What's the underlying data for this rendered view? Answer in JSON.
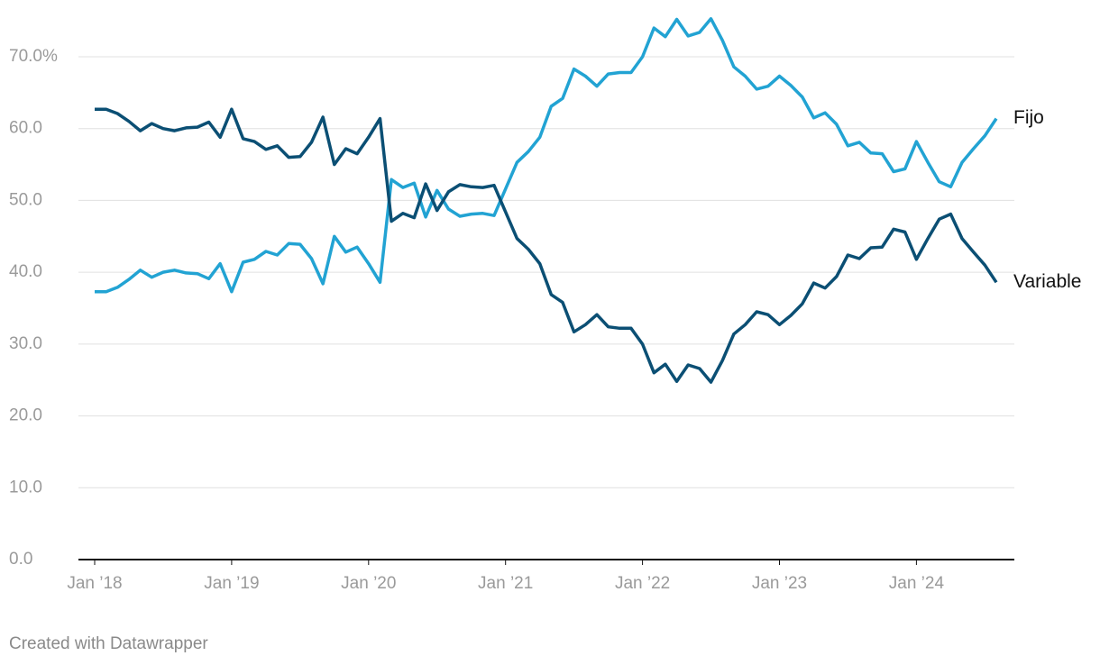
{
  "chart_data": {
    "type": "line",
    "x": [
      "2018-01",
      "2018-02",
      "2018-03",
      "2018-04",
      "2018-05",
      "2018-06",
      "2018-07",
      "2018-08",
      "2018-09",
      "2018-10",
      "2018-11",
      "2018-12",
      "2019-01",
      "2019-02",
      "2019-03",
      "2019-04",
      "2019-05",
      "2019-06",
      "2019-07",
      "2019-08",
      "2019-09",
      "2019-10",
      "2019-11",
      "2019-12",
      "2020-01",
      "2020-02",
      "2020-03",
      "2020-04",
      "2020-05",
      "2020-06",
      "2020-07",
      "2020-08",
      "2020-09",
      "2020-10",
      "2020-11",
      "2020-12",
      "2021-01",
      "2021-02",
      "2021-03",
      "2021-04",
      "2021-05",
      "2021-06",
      "2021-07",
      "2021-08",
      "2021-09",
      "2021-10",
      "2021-11",
      "2021-12",
      "2022-01",
      "2022-02",
      "2022-03",
      "2022-04",
      "2022-05",
      "2022-06",
      "2022-07",
      "2022-08",
      "2022-09",
      "2022-10",
      "2022-11",
      "2022-12",
      "2023-01",
      "2023-02",
      "2023-03",
      "2023-04",
      "2023-05",
      "2023-06",
      "2023-07",
      "2023-08",
      "2023-09",
      "2023-10",
      "2023-11",
      "2023-12",
      "2024-01",
      "2024-02",
      "2024-03",
      "2024-04",
      "2024-05",
      "2024-06",
      "2024-07",
      "2024-08"
    ],
    "series": [
      {
        "name": "Fijo",
        "color": "#22a3d3",
        "values": [
          37.3,
          37.3,
          37.9,
          39.0,
          40.3,
          39.3,
          40.0,
          40.3,
          39.9,
          39.8,
          39.1,
          41.2,
          37.3,
          41.4,
          41.8,
          42.9,
          42.4,
          44.0,
          43.9,
          41.9,
          38.4,
          45.0,
          42.8,
          43.5,
          41.2,
          38.6,
          52.9,
          51.8,
          52.4,
          47.7,
          51.4,
          48.8,
          47.8,
          48.1,
          48.2,
          47.9,
          51.6,
          55.3,
          56.8,
          58.8,
          63.1,
          64.2,
          68.3,
          67.3,
          65.9,
          67.6,
          67.8,
          67.8,
          70.0,
          74.0,
          72.8,
          75.2,
          72.9,
          73.4,
          75.3,
          72.3,
          68.6,
          67.3,
          65.5,
          65.9,
          67.3,
          66.0,
          64.4,
          61.5,
          62.2,
          60.6,
          57.6,
          58.1,
          56.6,
          56.5,
          54.0,
          54.4,
          58.2,
          55.3,
          52.6,
          51.9,
          55.3,
          57.2,
          59.0,
          61.4
        ]
      },
      {
        "name": "Variable",
        "color": "#0b4f74",
        "values": [
          62.7,
          62.7,
          62.1,
          61.0,
          59.7,
          60.7,
          60.0,
          59.7,
          60.1,
          60.2,
          60.9,
          58.8,
          62.7,
          58.6,
          58.2,
          57.1,
          57.6,
          56.0,
          56.1,
          58.1,
          61.6,
          55.0,
          57.2,
          56.5,
          58.8,
          61.4,
          47.1,
          48.2,
          47.6,
          52.3,
          48.6,
          51.2,
          52.2,
          51.9,
          51.8,
          52.1,
          48.4,
          44.7,
          43.2,
          41.2,
          36.9,
          35.8,
          31.7,
          32.7,
          34.1,
          32.4,
          32.2,
          32.2,
          30.0,
          26.0,
          27.2,
          24.8,
          27.1,
          26.6,
          24.7,
          27.7,
          31.4,
          32.7,
          34.5,
          34.1,
          32.7,
          34.0,
          35.6,
          38.5,
          37.8,
          39.4,
          42.4,
          41.9,
          43.4,
          43.5,
          46.0,
          45.6,
          41.8,
          44.7,
          47.4,
          48.1,
          44.7,
          42.8,
          41.0,
          38.6
        ]
      }
    ],
    "xlim": [
      "2018-01",
      "2024-08"
    ],
    "xticks": [
      {
        "value": "2018-01",
        "label": "Jan ’18"
      },
      {
        "value": "2019-01",
        "label": "Jan ’19"
      },
      {
        "value": "2020-01",
        "label": "Jan ’20"
      },
      {
        "value": "2021-01",
        "label": "Jan ’21"
      },
      {
        "value": "2022-01",
        "label": "Jan ’22"
      },
      {
        "value": "2023-01",
        "label": "Jan ’23"
      },
      {
        "value": "2024-01",
        "label": "Jan ’24"
      }
    ],
    "ylim": [
      0,
      70
    ],
    "yticks": [
      {
        "value": 0,
        "label": "0.0"
      },
      {
        "value": 10,
        "label": "10.0"
      },
      {
        "value": 20,
        "label": "20.0"
      },
      {
        "value": 30,
        "label": "30.0"
      },
      {
        "value": 40,
        "label": "40.0"
      },
      {
        "value": 50,
        "label": "50.0"
      },
      {
        "value": 60,
        "label": "60.0"
      },
      {
        "value": 70,
        "label": "70.0%"
      }
    ],
    "grid": true,
    "footer": "Created with Datawrapper"
  }
}
